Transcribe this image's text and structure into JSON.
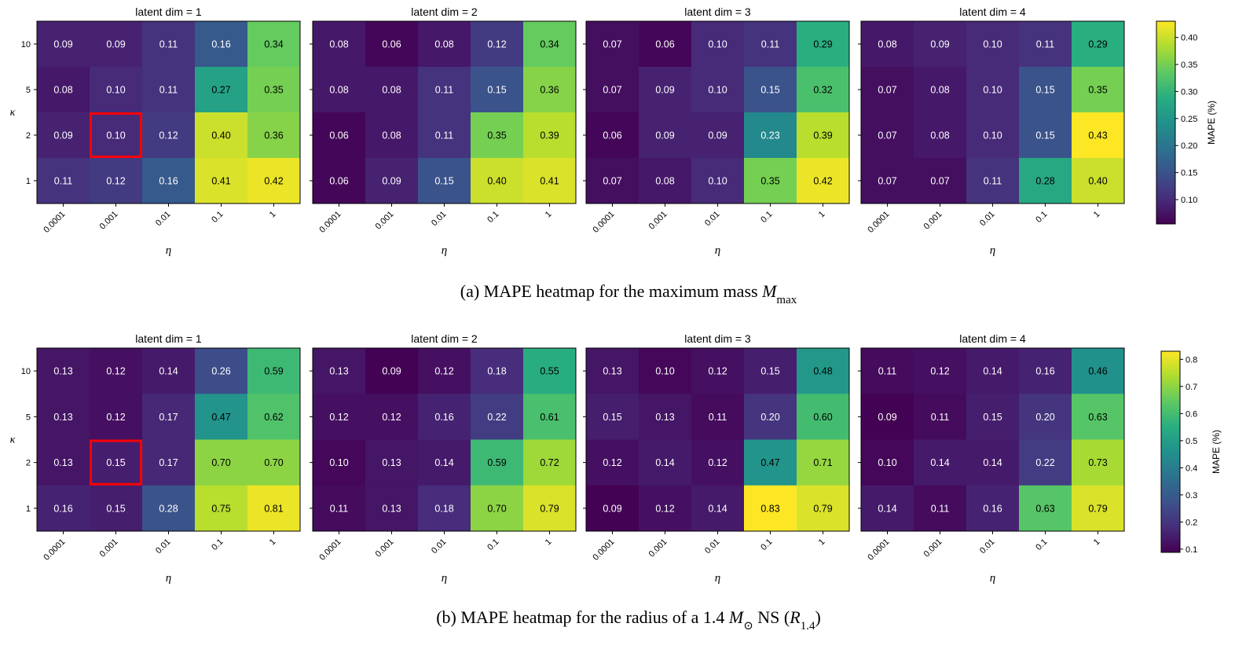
{
  "chart_data": [
    {
      "type": "heatmap",
      "caption": [
        {
          "t": "(a) MAPE heatmap for the maximum mass ",
          "s": "n"
        },
        {
          "t": "M",
          "s": "i"
        },
        {
          "t": "max",
          "s": "sub"
        }
      ],
      "xlabel": "η",
      "ylabel": "κ",
      "x_ticks": [
        "0.0001",
        "0.001",
        "0.01",
        "0.1",
        "1"
      ],
      "y_ticks": [
        "10",
        "5",
        "2",
        "1"
      ],
      "colorbar": {
        "label": "MAPE (%)",
        "range": [
          0.055,
          0.43
        ],
        "ticks": [
          "0.10",
          "0.15",
          "0.20",
          "0.25",
          "0.30",
          "0.35",
          "0.40"
        ]
      },
      "highlight": {
        "panel": 0,
        "kappa": "2",
        "eta": "0.001",
        "color": "#ff0000"
      },
      "panels": [
        {
          "title": "latent dim = 1",
          "values": [
            [
              0.09,
              0.09,
              0.11,
              0.16,
              0.34
            ],
            [
              0.08,
              0.1,
              0.11,
              0.27,
              0.35
            ],
            [
              0.09,
              0.1,
              0.12,
              0.4,
              0.36
            ],
            [
              0.11,
              0.12,
              0.16,
              0.41,
              0.42
            ]
          ]
        },
        {
          "title": "latent dim = 2",
          "values": [
            [
              0.08,
              0.06,
              0.08,
              0.12,
              0.34
            ],
            [
              0.08,
              0.08,
              0.11,
              0.15,
              0.36
            ],
            [
              0.06,
              0.08,
              0.11,
              0.35,
              0.39
            ],
            [
              0.06,
              0.09,
              0.15,
              0.4,
              0.41
            ]
          ]
        },
        {
          "title": "latent dim = 3",
          "values": [
            [
              0.07,
              0.06,
              0.1,
              0.11,
              0.29
            ],
            [
              0.07,
              0.09,
              0.1,
              0.15,
              0.32
            ],
            [
              0.06,
              0.09,
              0.09,
              0.23,
              0.39
            ],
            [
              0.07,
              0.08,
              0.1,
              0.35,
              0.42
            ]
          ]
        },
        {
          "title": "latent dim = 4",
          "values": [
            [
              0.08,
              0.09,
              0.1,
              0.11,
              0.29
            ],
            [
              0.07,
              0.08,
              0.1,
              0.15,
              0.35
            ],
            [
              0.07,
              0.08,
              0.1,
              0.15,
              0.43
            ],
            [
              0.07,
              0.07,
              0.11,
              0.28,
              0.4
            ]
          ]
        }
      ]
    },
    {
      "type": "heatmap",
      "caption": [
        {
          "t": "(b) MAPE heatmap for the radius of a 1.4 ",
          "s": "n"
        },
        {
          "t": "M",
          "s": "i"
        },
        {
          "t": "⊙",
          "s": "sub"
        },
        {
          "t": " NS (",
          "s": "n"
        },
        {
          "t": "R",
          "s": "i"
        },
        {
          "t": "1.4",
          "s": "sub"
        },
        {
          "t": ")",
          "s": "n"
        }
      ],
      "xlabel": "η",
      "ylabel": "κ",
      "x_ticks": [
        "0.0001",
        "0.001",
        "0.01",
        "0.1",
        "1"
      ],
      "y_ticks": [
        "10",
        "5",
        "2",
        "1"
      ],
      "colorbar": {
        "label": "MAPE (%)",
        "range": [
          0.088,
          0.83
        ],
        "ticks": [
          "0.1",
          "0.2",
          "0.3",
          "0.4",
          "0.5",
          "0.6",
          "0.7",
          "0.8"
        ]
      },
      "highlight": {
        "panel": 0,
        "kappa": "2",
        "eta": "0.001",
        "color": "#ff0000"
      },
      "panels": [
        {
          "title": "latent dim = 1",
          "values": [
            [
              0.13,
              0.12,
              0.14,
              0.26,
              0.59
            ],
            [
              0.13,
              0.12,
              0.17,
              0.47,
              0.62
            ],
            [
              0.13,
              0.15,
              0.17,
              0.7,
              0.7
            ],
            [
              0.16,
              0.15,
              0.28,
              0.75,
              0.81
            ]
          ]
        },
        {
          "title": "latent dim = 2",
          "values": [
            [
              0.13,
              0.09,
              0.12,
              0.18,
              0.55
            ],
            [
              0.12,
              0.12,
              0.16,
              0.22,
              0.61
            ],
            [
              0.1,
              0.13,
              0.14,
              0.59,
              0.72
            ],
            [
              0.11,
              0.13,
              0.18,
              0.7,
              0.79
            ]
          ]
        },
        {
          "title": "latent dim = 3",
          "values": [
            [
              0.13,
              0.1,
              0.12,
              0.15,
              0.48
            ],
            [
              0.15,
              0.13,
              0.11,
              0.2,
              0.6
            ],
            [
              0.12,
              0.14,
              0.12,
              0.47,
              0.71
            ],
            [
              0.09,
              0.12,
              0.14,
              0.83,
              0.79
            ]
          ]
        },
        {
          "title": "latent dim = 4",
          "values": [
            [
              0.11,
              0.12,
              0.14,
              0.16,
              0.46
            ],
            [
              0.09,
              0.11,
              0.15,
              0.2,
              0.63
            ],
            [
              0.1,
              0.14,
              0.14,
              0.22,
              0.73
            ],
            [
              0.14,
              0.11,
              0.16,
              0.63,
              0.79
            ]
          ]
        }
      ]
    }
  ]
}
